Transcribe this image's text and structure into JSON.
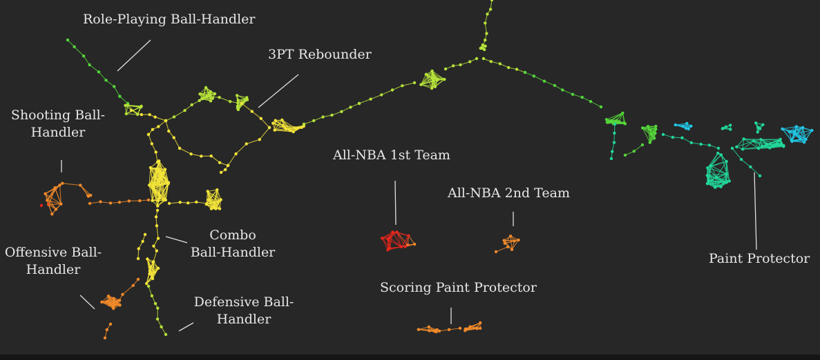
{
  "colors": {
    "background": "#272727",
    "leader_line": "#e0e0e0",
    "label_text": "#e8e8e8",
    "red": "#e8271c",
    "orange": "#f08a2a",
    "yellow": "#f2e33a",
    "yellow_green": "#b6e23a",
    "green": "#55d63a",
    "teal": "#22d69a",
    "cyan": "#22c8e6"
  },
  "labels": {
    "role_playing_ball_handler": "Role-Playing Ball-Handler",
    "three_pt_rebounder": "3PT Rebounder",
    "shooting_ball_handler_1": "Shooting Ball-",
    "shooting_ball_handler_2": "Handler",
    "all_nba_1st_team": "All-NBA 1st Team",
    "all_nba_2nd_team": "All-NBA 2nd Team",
    "combo_ball_handler_1": "Combo",
    "combo_ball_handler_2": "Ball-Handler",
    "offensive_ball_handler_1": "Offensive Ball-",
    "offensive_ball_handler_2": "Handler",
    "defensive_ball_handler_1": "Defensive Ball-",
    "defensive_ball_handler_2": "Handler",
    "scoring_paint_protector": "Scoring Paint Protector",
    "paint_protector": "Paint Protector"
  }
}
